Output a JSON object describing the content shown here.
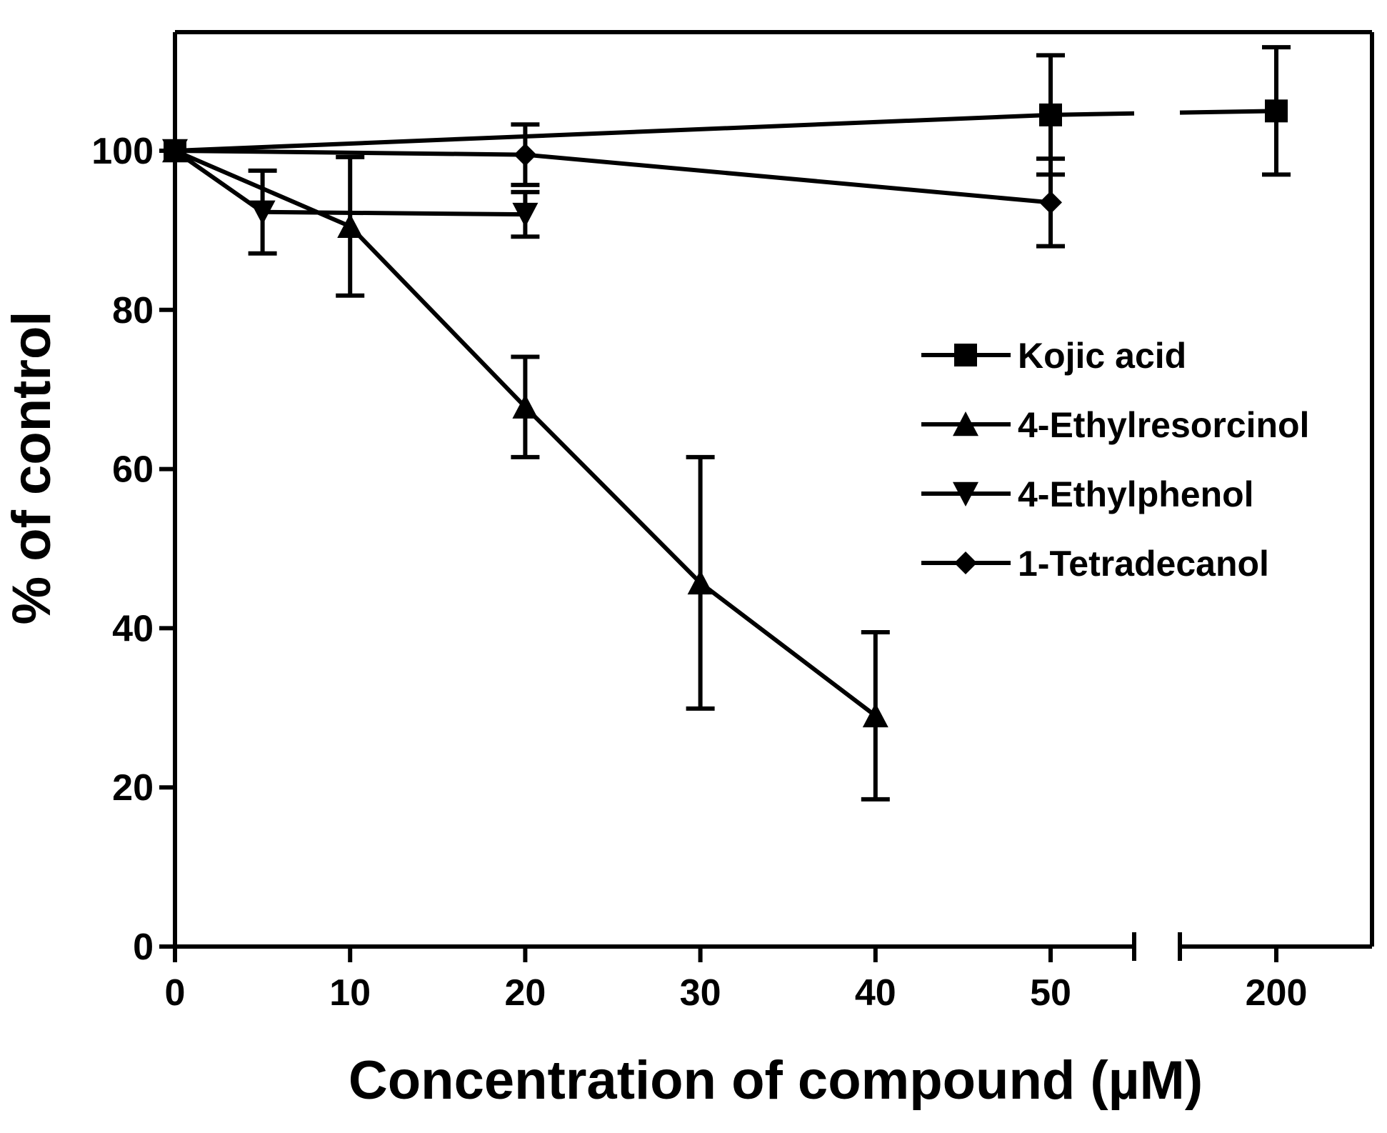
{
  "chart_data": {
    "type": "line",
    "title": "",
    "xlabel": "Concentration of compound (µM)",
    "ylabel": "% of control",
    "x_ticks": [
      "0",
      "10",
      "20",
      "30",
      "40",
      "50",
      "200"
    ],
    "y_ticks": [
      "0",
      "20",
      "40",
      "60",
      "80",
      "100"
    ],
    "ylim": [
      0,
      115
    ],
    "x_axis_break": {
      "after": 50,
      "before": 200
    },
    "grid": false,
    "legend_position": "right",
    "series": [
      {
        "name": "Kojic acid",
        "marker": "square",
        "points": [
          {
            "x": 0,
            "y": 100,
            "err": 0
          },
          {
            "x": 50,
            "y": 104.5,
            "err": 7.5
          },
          {
            "x": 200,
            "y": 105,
            "err": 8
          }
        ]
      },
      {
        "name": "4-Ethylresorcinol",
        "marker": "triangle-up",
        "points": [
          {
            "x": 0,
            "y": 100,
            "err": 0
          },
          {
            "x": 10,
            "y": 90.5,
            "err": 8.7
          },
          {
            "x": 20,
            "y": 67.8,
            "err": 6.3
          },
          {
            "x": 30,
            "y": 45.7,
            "err": 15.8
          },
          {
            "x": 40,
            "y": 29,
            "err": 10.5
          }
        ]
      },
      {
        "name": "4-Ethylphenol",
        "marker": "triangle-down",
        "points": [
          {
            "x": 0,
            "y": 100,
            "err": 0
          },
          {
            "x": 5,
            "y": 92.3,
            "err": 5.2
          },
          {
            "x": 20,
            "y": 92,
            "err": 2.8
          }
        ]
      },
      {
        "name": "1-Tetradecanol",
        "marker": "diamond",
        "points": [
          {
            "x": 0,
            "y": 100,
            "err": 0
          },
          {
            "x": 20,
            "y": 99.5,
            "err": 3.8
          },
          {
            "x": 50,
            "y": 93.5,
            "err": 5.5
          }
        ]
      }
    ],
    "color": "#000000"
  }
}
